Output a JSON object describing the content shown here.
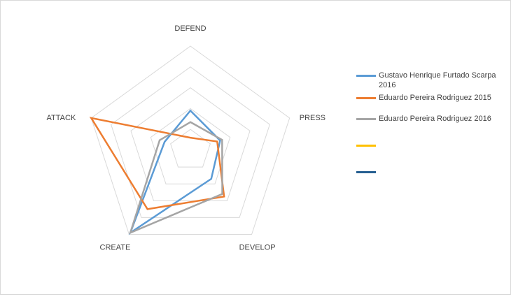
{
  "chart_data": {
    "type": "radar",
    "title": "",
    "axes": [
      "DEFEND",
      "PRESS",
      "DEVELOP",
      "CREATE",
      "ATTACK"
    ],
    "range": [
      0,
      100
    ],
    "grid_levels": 5,
    "series": [
      {
        "name": "Gustavo Henrique Furtado Scarpa 2016",
        "color": "#5b9bd5",
        "values": [
          38,
          30,
          34,
          98,
          26
        ]
      },
      {
        "name": "Eduardo Pereira Rodriguez 2015",
        "color": "#ed7d31",
        "values": [
          12,
          27,
          55,
          70,
          100
        ]
      },
      {
        "name": "Eduardo Pereira Rodriguez 2016",
        "color": "#a5a5a5",
        "values": [
          27,
          32,
          52,
          98,
          31
        ]
      },
      {
        "name": "",
        "color": "#ffc000",
        "values": []
      },
      {
        "name": "",
        "color": "#255e91",
        "values": []
      }
    ]
  }
}
